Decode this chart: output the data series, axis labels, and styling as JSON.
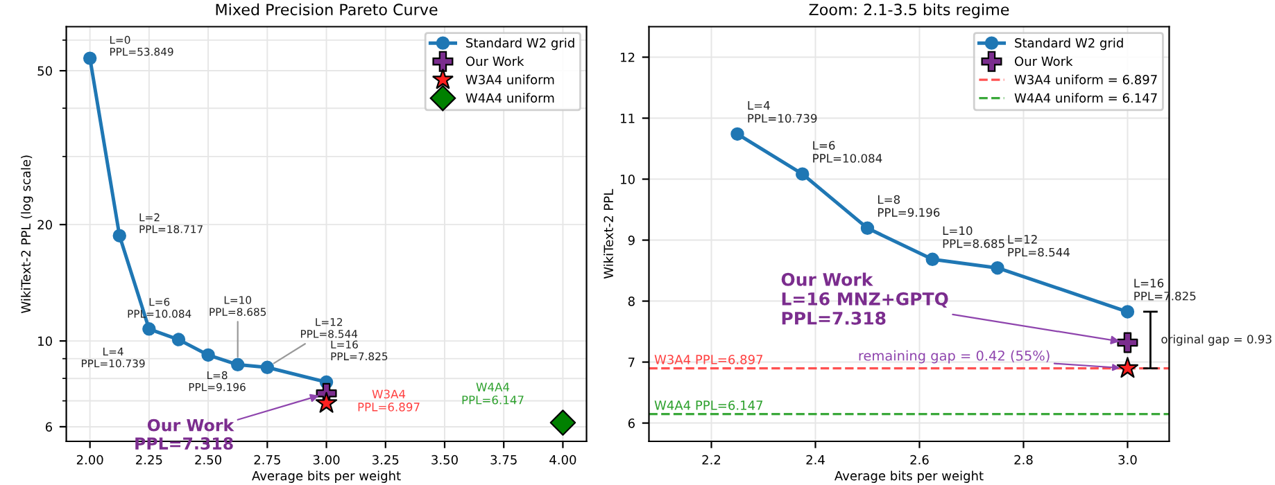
{
  "chart_data": [
    {
      "type": "line",
      "title": "Mixed Precision Pareto Curve",
      "xlabel": "Average bits per weight",
      "ylabel": "WikiText-2 PPL (log scale)",
      "log": "y",
      "xlim": [
        1.9,
        4.1
      ],
      "xticks": [
        {
          "value": 2.0,
          "label": "2.00"
        },
        2.25,
        {
          "value": 2.5,
          "label": "2.50"
        },
        2.75,
        {
          "value": 3.0,
          "label": "3.00"
        },
        3.25,
        {
          "value": 3.5,
          "label": "3.50"
        },
        3.75,
        {
          "value": 4.0,
          "label": "4.00"
        }
      ],
      "ylim": [
        5.5,
        65
      ],
      "yticks": [
        6,
        10,
        20,
        50
      ],
      "grid": true,
      "legend": "top right",
      "series": [
        {
          "name": "Standard W2 grid",
          "marker": "circle",
          "color": "#1f77b4",
          "x": [
            2.0,
            2.125,
            2.25,
            2.375,
            2.5,
            2.625,
            2.75,
            3.0
          ],
          "values": [
            53.849,
            18.717,
            10.739,
            10.084,
            9.196,
            8.685,
            8.544,
            7.825
          ]
        },
        {
          "name": "Our Work",
          "type": "scatter",
          "marker": "cross",
          "color": "#7b2d8e",
          "x": [
            3.0
          ],
          "values": [
            7.318
          ]
        },
        {
          "name": "W3A4 uniform",
          "type": "scatter",
          "marker": "star",
          "color": "#ff2020",
          "x": [
            3.0
          ],
          "values": [
            6.897
          ]
        },
        {
          "name": "W4A4 uniform",
          "type": "scatter",
          "marker": "diamond",
          "color": "#008000",
          "x": [
            4.0
          ],
          "values": [
            6.147
          ]
        }
      ],
      "annotations": [
        {
          "text": "L=0\nPPL=53.849",
          "x": 2.0,
          "y": 53.849
        },
        {
          "text": "L=2\nPPL=18.717",
          "x": 2.125,
          "y": 18.717
        },
        "L=4\nPPL=10.739",
        {
          "text": "L=6\nPPL=10.084",
          "x": 2.375,
          "y": 10.084
        },
        "L=8\nPPL=9.196",
        {
          "text": "L=10\nPPL=8.685",
          "x": 2.625,
          "y": 8.685
        },
        {
          "text": "L=12\nPPL=8.544",
          "x": 2.75,
          "y": 8.544
        },
        {
          "text": "L=16\nPPL=7.825",
          "x": 3.0,
          "y": 7.825
        },
        {
          "text": "Our Work\nPPL=7.318",
          "x": 3.0,
          "y": 7.318
        },
        "W3A4\nPPL=6.897",
        "W4A4\nPPL=6.147"
      ]
    },
    {
      "type": "line",
      "title": "Zoom: 2.1-3.5 bits regime",
      "xlabel": "Average bits per weight",
      "ylabel": "WikiText-2 PPL",
      "xlim": [
        2.08,
        3.08
      ],
      "xticks": [
        2.2,
        2.4,
        2.6,
        2.8,
        {
          "value": 3.0,
          "label": "3.0"
        }
      ],
      "ylim": [
        5.7,
        12.5
      ],
      "yticks": [
        6,
        7,
        8,
        9,
        10,
        11,
        12
      ],
      "grid": true,
      "legend": "top right",
      "series": [
        {
          "name": "Standard W2 grid",
          "marker": "circle",
          "color": "#1f77b4",
          "x": [
            2.25,
            2.375,
            2.5,
            2.625,
            2.75,
            3.0
          ],
          "values": [
            10.739,
            10.084,
            9.196,
            8.685,
            8.544,
            7.825
          ]
        },
        {
          "name": "Our Work",
          "type": "scatter",
          "marker": "cross",
          "color": "#7b2d8e",
          "x": [
            3.0
          ],
          "values": [
            7.318
          ]
        },
        {
          "type": "scatter",
          "marker": "star",
          "color": "#ff2020",
          "x": [
            3.0
          ],
          "values": [
            6.897
          ]
        }
      ],
      "ref_lines": [
        {
          "axis": "y",
          "value": 6.897,
          "label": "W3A4 uniform = 6.897",
          "color": "#ff5050",
          "line_style": "dashed"
        },
        {
          "axis": "y",
          "value": 6.147,
          "label": "W4A4 uniform = 6.147",
          "color": "#3aa83a",
          "line_style": "dashed"
        }
      ],
      "annotations": [
        {
          "text": "L=4\nPPL=10.739",
          "x": 2.25,
          "y": 10.739
        },
        {
          "text": "L=6\nPPL=10.084",
          "x": 2.375,
          "y": 10.084
        },
        {
          "text": "L=8\nPPL=9.196",
          "x": 2.5,
          "y": 9.196
        },
        {
          "text": "L=10\nPPL=8.685",
          "x": 2.625,
          "y": 8.685
        },
        {
          "text": "L=12\nPPL=8.544",
          "x": 2.75,
          "y": 8.544
        },
        {
          "text": "L=16\nPPL=7.825",
          "x": 3.0,
          "y": 7.825
        },
        {
          "text": "Our Work\nL=16 MNZ+GPTQ\nPPL=7.318",
          "x": 3.0,
          "y": 7.318
        },
        {
          "text": "remaining gap = 0.42 (55%)",
          "x": 3.0,
          "y": 6.897
        },
        {
          "text": "W3A4 PPL=6.897",
          "x": 2.09,
          "y": 6.897
        },
        {
          "text": "W4A4 PPL=6.147",
          "x": 2.09,
          "y": 6.147
        },
        "original gap = 0.93"
      ]
    }
  ]
}
